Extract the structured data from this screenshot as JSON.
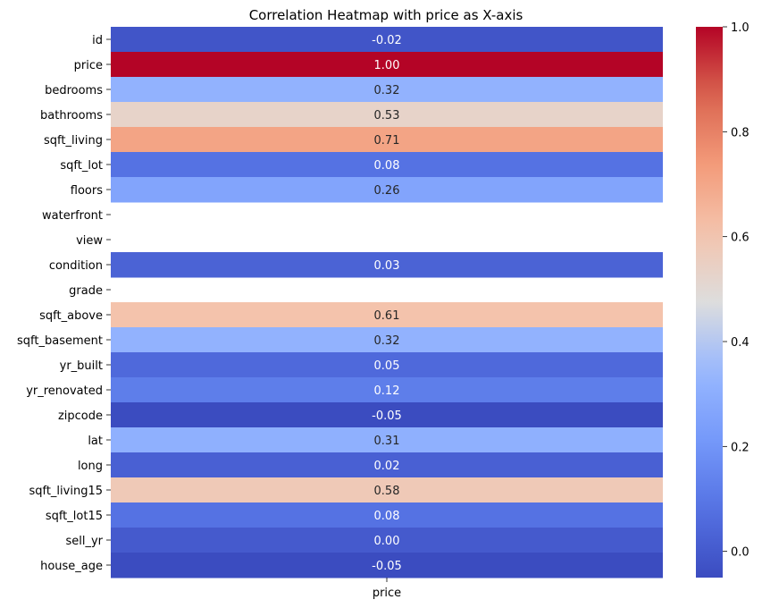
{
  "chart_data": {
    "type": "heatmap",
    "title": "Correlation Heatmap with price as X-axis",
    "columns": [
      "price"
    ],
    "rows": [
      {
        "label": "id",
        "value": -0.02,
        "text": "-0.02"
      },
      {
        "label": "price",
        "value": 1.0,
        "text": "1.00"
      },
      {
        "label": "bedrooms",
        "value": 0.32,
        "text": "0.32"
      },
      {
        "label": "bathrooms",
        "value": 0.53,
        "text": "0.53"
      },
      {
        "label": "sqft_living",
        "value": 0.71,
        "text": "0.71"
      },
      {
        "label": "sqft_lot",
        "value": 0.08,
        "text": "0.08"
      },
      {
        "label": "floors",
        "value": 0.26,
        "text": "0.26"
      },
      {
        "label": "waterfront",
        "value": null,
        "text": ""
      },
      {
        "label": "view",
        "value": null,
        "text": ""
      },
      {
        "label": "condition",
        "value": 0.03,
        "text": "0.03"
      },
      {
        "label": "grade",
        "value": null,
        "text": ""
      },
      {
        "label": "sqft_above",
        "value": 0.61,
        "text": "0.61"
      },
      {
        "label": "sqft_basement",
        "value": 0.32,
        "text": "0.32"
      },
      {
        "label": "yr_built",
        "value": 0.05,
        "text": "0.05"
      },
      {
        "label": "yr_renovated",
        "value": 0.12,
        "text": "0.12"
      },
      {
        "label": "zipcode",
        "value": -0.05,
        "text": "-0.05"
      },
      {
        "label": "lat",
        "value": 0.31,
        "text": "0.31"
      },
      {
        "label": "long",
        "value": 0.02,
        "text": "0.02"
      },
      {
        "label": "sqft_living15",
        "value": 0.58,
        "text": "0.58"
      },
      {
        "label": "sqft_lot15",
        "value": 0.08,
        "text": "0.08"
      },
      {
        "label": "sell_yr",
        "value": 0.0,
        "text": "0.00"
      },
      {
        "label": "house_age",
        "value": -0.05,
        "text": "-0.05"
      }
    ],
    "colormap": "coolwarm",
    "vmin": -0.05,
    "vmax": 1.0,
    "colorbar_ticks": [
      "0.0",
      "0.2",
      "0.4",
      "0.6",
      "0.8",
      "1.0"
    ],
    "grid": false
  }
}
